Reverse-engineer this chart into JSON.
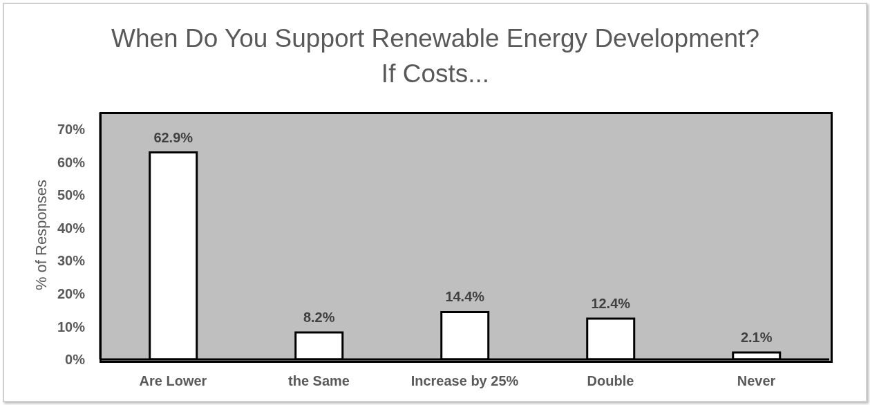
{
  "chart_data": {
    "type": "bar",
    "title": "When Do You Support Renewable Energy Development?\nIf Costs...",
    "ylabel": "% of Responses",
    "categories": [
      "Are Lower",
      "the Same",
      "Increase by 25%",
      "Double",
      "Never"
    ],
    "values": [
      62.9,
      8.2,
      14.4,
      12.4,
      2.1
    ],
    "value_labels": [
      "62.9%",
      "8.2%",
      "14.4%",
      "12.4%",
      "2.1%"
    ],
    "color": "#ffffff",
    "ylim": [
      0,
      75
    ],
    "yticks": [
      {
        "value": 0,
        "label": "0%"
      },
      {
        "value": 10,
        "label": "10%"
      },
      {
        "value": 20,
        "label": "20%"
      },
      {
        "value": 30,
        "label": "30%"
      },
      {
        "value": 40,
        "label": "40%"
      },
      {
        "value": 50,
        "label": "50%"
      },
      {
        "value": 60,
        "label": "60%"
      },
      {
        "value": 70,
        "label": "70%"
      }
    ],
    "grid": false,
    "legend": false
  }
}
